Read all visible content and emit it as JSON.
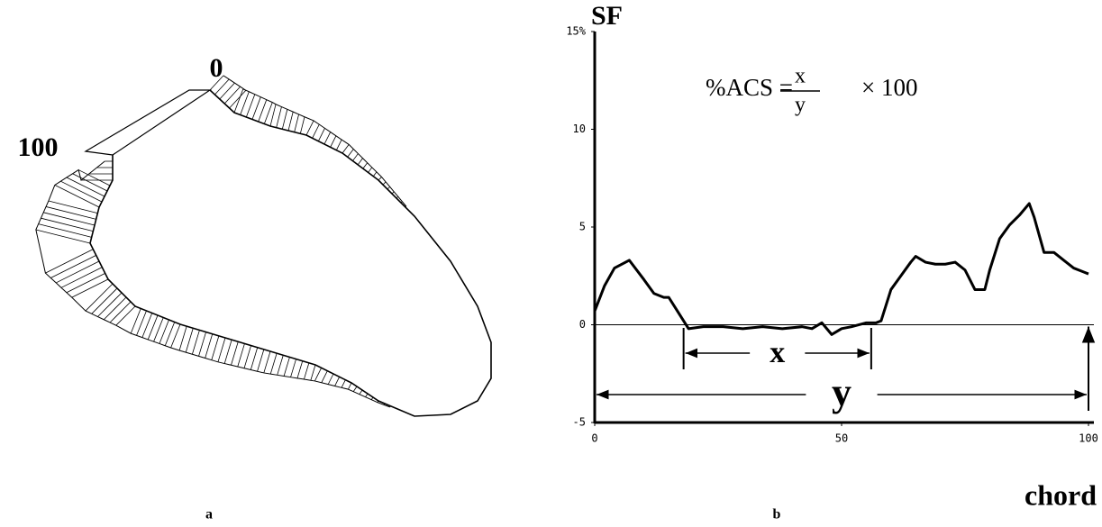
{
  "diagram": {
    "labels": [
      "0",
      "100"
    ],
    "caption": "a"
  },
  "chart_data": {
    "type": "line",
    "caption": "b",
    "ylabel": "SF",
    "xlabel": "chord",
    "formula": {
      "left": "%ACS =",
      "numerator": "x",
      "denominator": "y",
      "right": "× 100"
    },
    "annotations": [
      {
        "text": "x",
        "span": [
          18,
          56
        ]
      },
      {
        "text": "y",
        "span": [
          0,
          100
        ]
      }
    ],
    "xlim": [
      0,
      100
    ],
    "xticks": [
      0,
      50,
      100
    ],
    "ylim": [
      -5,
      15
    ],
    "yticks": [
      -5,
      0,
      5,
      10,
      {
        "value": 15,
        "label": "15%"
      }
    ],
    "x": [
      0,
      2,
      4,
      7,
      10,
      12,
      14,
      15,
      17,
      19,
      22,
      26,
      30,
      34,
      38,
      42,
      44,
      46,
      48,
      50,
      52,
      55,
      57,
      58,
      60,
      62,
      64,
      65,
      67,
      69,
      71,
      73,
      75,
      77,
      79,
      80,
      82,
      84,
      86,
      88,
      89,
      91,
      93,
      95,
      97,
      99,
      100
    ],
    "series": [
      {
        "name": "SF",
        "color": "#000000",
        "values": [
          0.7,
          2.0,
          2.9,
          3.3,
          2.3,
          1.6,
          1.4,
          1.4,
          0.6,
          -0.2,
          -0.1,
          -0.1,
          -0.2,
          -0.1,
          -0.2,
          -0.1,
          -0.2,
          0.1,
          -0.5,
          -0.2,
          -0.1,
          0.1,
          0.1,
          0.2,
          1.8,
          2.5,
          3.2,
          3.5,
          3.2,
          3.1,
          3.1,
          3.2,
          2.8,
          1.8,
          1.8,
          2.8,
          4.4,
          5.1,
          5.6,
          6.2,
          5.5,
          3.7,
          3.7,
          3.3,
          2.9,
          2.7,
          2.6
        ]
      }
    ]
  }
}
